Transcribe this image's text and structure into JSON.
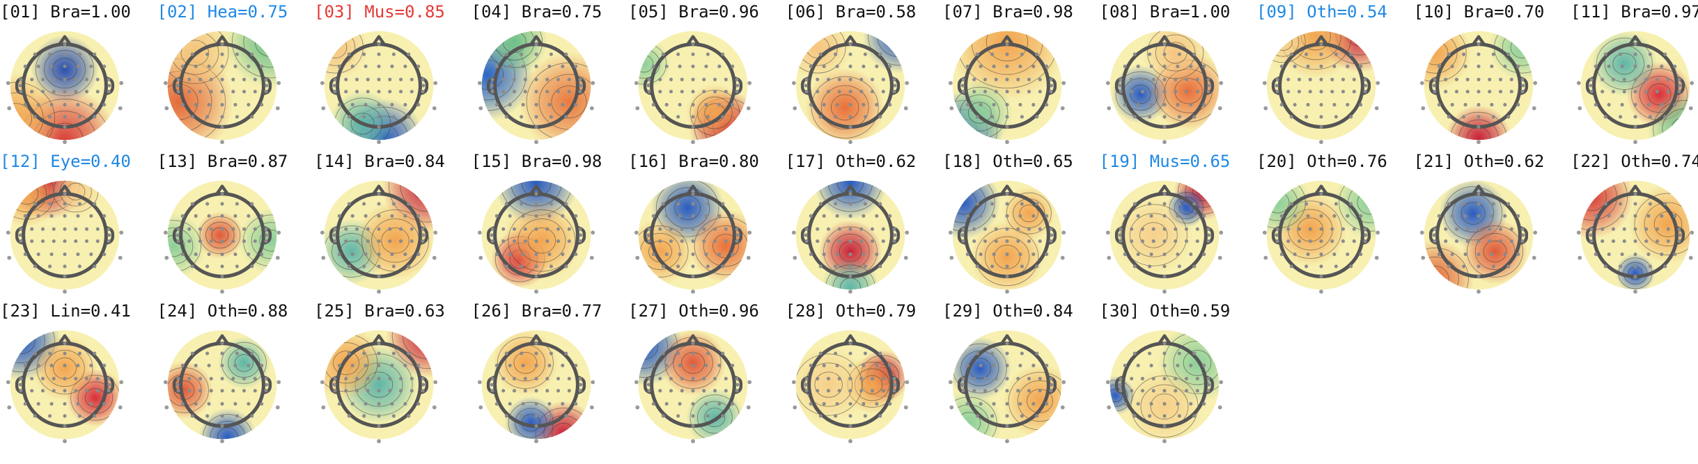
{
  "components": [
    {
      "label": "[01] Bra=1.00",
      "id": "01",
      "cls": "Bra",
      "score": 1.0,
      "color": "#111111",
      "blobs": [
        [
          "#2a4fb0",
          0.5,
          0.35,
          0.26
        ],
        [
          "#d8403a",
          0.5,
          1.0,
          0.4
        ],
        [
          "#f2a550",
          0.05,
          0.8,
          0.35
        ]
      ]
    },
    {
      "label": "[02] Hea=0.75",
      "id": "02",
      "cls": "Hea",
      "score": 0.75,
      "color": "#1e88e5",
      "blobs": [
        [
          "#e46a3a",
          0.1,
          0.65,
          0.42
        ],
        [
          "#6bbf8a",
          0.95,
          0.1,
          0.35
        ],
        [
          "#f4c27a",
          0.25,
          0.2,
          0.3
        ]
      ]
    },
    {
      "label": "[03] Mus=0.85",
      "id": "03",
      "cls": "Mus",
      "score": 0.85,
      "color": "#e53935",
      "blobs": [
        [
          "#2a5cc0",
          0.55,
          0.98,
          0.3
        ],
        [
          "#5fb6a8",
          0.35,
          0.85,
          0.25
        ],
        [
          "#f6c480",
          0.1,
          0.15,
          0.25
        ]
      ]
    },
    {
      "label": "[04] Bra=0.75",
      "id": "04",
      "cls": "Bra",
      "score": 0.75,
      "color": "#111111",
      "blobs": [
        [
          "#2b66c6",
          0.05,
          0.4,
          0.35
        ],
        [
          "#e87a40",
          0.8,
          0.65,
          0.38
        ],
        [
          "#6bbf8a",
          0.3,
          0.1,
          0.25
        ]
      ]
    },
    {
      "label": "[05] Bra=0.96",
      "id": "05",
      "cls": "Bra",
      "score": 0.96,
      "color": "#111111",
      "blobs": [
        [
          "#c8233a",
          0.8,
          0.88,
          0.28
        ],
        [
          "#f2a550",
          0.7,
          0.75,
          0.22
        ],
        [
          "#8ccf9a",
          0.05,
          0.3,
          0.2
        ]
      ]
    },
    {
      "label": "[06] Bra=0.58",
      "id": "06",
      "cls": "Bra",
      "score": 0.58,
      "color": "#111111",
      "blobs": [
        [
          "#e8703a",
          0.45,
          0.7,
          0.3
        ],
        [
          "#2a5cc0",
          0.95,
          0.05,
          0.28
        ],
        [
          "#f6c480",
          0.2,
          0.15,
          0.25
        ]
      ]
    },
    {
      "label": "[07] Bra=0.98",
      "id": "07",
      "cls": "Bra",
      "score": 0.98,
      "color": "#111111",
      "blobs": [
        [
          "#2a5cc0",
          0.1,
          0.92,
          0.3
        ],
        [
          "#f2a550",
          0.5,
          0.1,
          0.45
        ],
        [
          "#8ccf9a",
          0.25,
          0.75,
          0.25
        ]
      ]
    },
    {
      "label": "[08] Bra=1.00",
      "id": "08",
      "cls": "Bra",
      "score": 1.0,
      "color": "#111111",
      "blobs": [
        [
          "#2a5cc0",
          0.28,
          0.58,
          0.22
        ],
        [
          "#e8703a",
          0.72,
          0.55,
          0.3
        ],
        [
          "#f6c480",
          0.6,
          0.2,
          0.25
        ]
      ]
    },
    {
      "label": "[09] Oth=0.54",
      "id": "09",
      "cls": "Oth",
      "score": 0.54,
      "color": "#1e88e5",
      "blobs": [
        [
          "#c8233a",
          0.85,
          0.02,
          0.3
        ],
        [
          "#f2a550",
          0.45,
          0.05,
          0.32
        ],
        [
          "#f6d08a",
          0.15,
          0.1,
          0.2
        ]
      ]
    },
    {
      "label": "[10] Bra=0.70",
      "id": "10",
      "cls": "Bra",
      "score": 0.7,
      "color": "#111111",
      "blobs": [
        [
          "#c8233a",
          0.5,
          0.98,
          0.25
        ],
        [
          "#f2a550",
          0.1,
          0.2,
          0.28
        ],
        [
          "#8ccf9a",
          0.9,
          0.15,
          0.25
        ]
      ]
    },
    {
      "label": "[11] Bra=0.97",
      "id": "11",
      "cls": "Bra",
      "score": 0.97,
      "color": "#111111",
      "blobs": [
        [
          "#d8303a",
          0.72,
          0.58,
          0.25
        ],
        [
          "#5fb6a8",
          0.4,
          0.3,
          0.25
        ],
        [
          "#6bbf8a",
          0.95,
          0.9,
          0.28
        ]
      ]
    },
    {
      "label": "[12] Eye=0.40",
      "id": "12",
      "cls": "Eye",
      "score": 0.4,
      "color": "#1e88e5",
      "blobs": [
        [
          "#c8233a",
          0.35,
          0.02,
          0.28
        ],
        [
          "#f2a550",
          0.15,
          0.12,
          0.25
        ],
        [
          "#f6d08a",
          0.6,
          0.1,
          0.2
        ]
      ]
    },
    {
      "label": "[13] Bra=0.87",
      "id": "13",
      "cls": "Bra",
      "score": 0.87,
      "color": "#111111",
      "blobs": [
        [
          "#e05a3a",
          0.48,
          0.5,
          0.18
        ],
        [
          "#8ccf9a",
          0.05,
          0.6,
          0.25
        ],
        [
          "#8ccf9a",
          0.95,
          0.55,
          0.25
        ]
      ]
    },
    {
      "label": "[14] Bra=0.84",
      "id": "14",
      "cls": "Bra",
      "score": 0.84,
      "color": "#111111",
      "blobs": [
        [
          "#c8233a",
          0.95,
          0.05,
          0.35
        ],
        [
          "#5fb6a8",
          0.25,
          0.65,
          0.25
        ],
        [
          "#f2a550",
          0.65,
          0.55,
          0.3
        ]
      ]
    },
    {
      "label": "[15] Bra=0.98",
      "id": "15",
      "cls": "Bra",
      "score": 0.98,
      "color": "#111111",
      "blobs": [
        [
          "#2a5cc0",
          0.5,
          0.02,
          0.32
        ],
        [
          "#d8303a",
          0.35,
          0.72,
          0.22
        ],
        [
          "#f2a550",
          0.55,
          0.55,
          0.3
        ]
      ]
    },
    {
      "label": "[16] Bra=0.80",
      "id": "16",
      "cls": "Bra",
      "score": 0.8,
      "color": "#111111",
      "blobs": [
        [
          "#2a5cc0",
          0.45,
          0.25,
          0.28
        ],
        [
          "#f2a550",
          0.2,
          0.65,
          0.25
        ],
        [
          "#e8703a",
          0.8,
          0.6,
          0.28
        ]
      ]
    },
    {
      "label": "[17] Oth=0.62",
      "id": "17",
      "cls": "Oth",
      "score": 0.62,
      "color": "#111111",
      "blobs": [
        [
          "#c8233a",
          0.5,
          0.65,
          0.24
        ],
        [
          "#2a5cc0",
          0.5,
          0.02,
          0.28
        ],
        [
          "#5fb6a8",
          0.5,
          0.98,
          0.22
        ]
      ]
    },
    {
      "label": "[18] Oth=0.65",
      "id": "18",
      "cls": "Oth",
      "score": 0.65,
      "color": "#111111",
      "blobs": [
        [
          "#2a5cc0",
          0.1,
          0.2,
          0.28
        ],
        [
          "#f2a550",
          0.5,
          0.7,
          0.28
        ],
        [
          "#f2a550",
          0.7,
          0.3,
          0.2
        ]
      ]
    },
    {
      "label": "[19] Mus=0.65",
      "id": "19",
      "cls": "Mus",
      "score": 0.65,
      "color": "#1e88e5",
      "blobs": [
        [
          "#c8233a",
          0.85,
          0.1,
          0.22
        ],
        [
          "#2a5cc0",
          0.7,
          0.25,
          0.15
        ],
        [
          "#f6d08a",
          0.4,
          0.5,
          0.3
        ]
      ]
    },
    {
      "label": "[20] Oth=0.76",
      "id": "20",
      "cls": "Oth",
      "score": 0.76,
      "color": "#111111",
      "blobs": [
        [
          "#f2a550",
          0.4,
          0.45,
          0.28
        ],
        [
          "#8ccf9a",
          0.95,
          0.2,
          0.28
        ],
        [
          "#8ccf9a",
          0.1,
          0.2,
          0.25
        ]
      ]
    },
    {
      "label": "[21] Oth=0.62",
      "id": "21",
      "cls": "Oth",
      "score": 0.62,
      "color": "#111111",
      "blobs": [
        [
          "#2a5cc0",
          0.45,
          0.3,
          0.26
        ],
        [
          "#e05a3a",
          0.65,
          0.65,
          0.25
        ],
        [
          "#e46a3a",
          0.1,
          0.9,
          0.3
        ]
      ]
    },
    {
      "label": "[22] Oth=0.74",
      "id": "22",
      "cls": "Oth",
      "score": 0.74,
      "color": "#111111",
      "blobs": [
        [
          "#d8403a",
          0.1,
          0.15,
          0.32
        ],
        [
          "#2a5cc0",
          0.5,
          0.85,
          0.15
        ],
        [
          "#f2a550",
          0.8,
          0.4,
          0.3
        ]
      ]
    },
    {
      "label": "[23] Lin=0.41",
      "id": "23",
      "cls": "Lin",
      "score": 0.41,
      "color": "#111111",
      "blobs": [
        [
          "#2a5cc0",
          0.1,
          0.1,
          0.3
        ],
        [
          "#d8303a",
          0.78,
          0.62,
          0.22
        ],
        [
          "#f2a550",
          0.5,
          0.35,
          0.25
        ]
      ]
    },
    {
      "label": "[24] Oth=0.88",
      "id": "24",
      "cls": "Oth",
      "score": 0.88,
      "color": "#111111",
      "blobs": [
        [
          "#e05a3a",
          0.15,
          0.55,
          0.22
        ],
        [
          "#2a5cc0",
          0.55,
          0.98,
          0.22
        ],
        [
          "#5fb6a8",
          0.7,
          0.3,
          0.2
        ]
      ]
    },
    {
      "label": "[25] Bra=0.63",
      "id": "25",
      "cls": "Bra",
      "score": 0.63,
      "color": "#111111",
      "blobs": [
        [
          "#c8233a",
          0.95,
          0.05,
          0.32
        ],
        [
          "#5fb6a8",
          0.5,
          0.5,
          0.3
        ],
        [
          "#f2a550",
          0.2,
          0.3,
          0.28
        ]
      ]
    },
    {
      "label": "[26] Bra=0.77",
      "id": "26",
      "cls": "Bra",
      "score": 0.77,
      "color": "#111111",
      "blobs": [
        [
          "#c8233a",
          0.75,
          0.95,
          0.25
        ],
        [
          "#2a5cc0",
          0.45,
          0.85,
          0.2
        ],
        [
          "#f2a550",
          0.4,
          0.3,
          0.25
        ]
      ]
    },
    {
      "label": "[27] Oth=0.96",
      "id": "27",
      "cls": "Oth",
      "score": 0.96,
      "color": "#111111",
      "blobs": [
        [
          "#2a5cc0",
          0.05,
          0.15,
          0.3
        ],
        [
          "#e05a3a",
          0.5,
          0.3,
          0.25
        ],
        [
          "#5fb6a8",
          0.7,
          0.8,
          0.22
        ]
      ]
    },
    {
      "label": "[28] Oth=0.79",
      "id": "28",
      "cls": "Oth",
      "score": 0.79,
      "color": "#111111",
      "blobs": [
        [
          "#c8233a",
          0.8,
          0.42,
          0.2
        ],
        [
          "#f2a550",
          0.7,
          0.5,
          0.22
        ],
        [
          "#f6d08a",
          0.3,
          0.5,
          0.3
        ]
      ]
    },
    {
      "label": "[29] Oth=0.84",
      "id": "29",
      "cls": "Oth",
      "score": 0.84,
      "color": "#111111",
      "blobs": [
        [
          "#2a5cc0",
          0.25,
          0.35,
          0.24
        ],
        [
          "#f2a550",
          0.8,
          0.65,
          0.28
        ],
        [
          "#8ccf9a",
          0.15,
          0.85,
          0.25
        ]
      ]
    },
    {
      "label": "[30] Oth=0.59",
      "id": "30",
      "cls": "Oth",
      "score": 0.59,
      "color": "#111111",
      "blobs": [
        [
          "#2a5cc0",
          0.05,
          0.6,
          0.15
        ],
        [
          "#8ccf9a",
          0.8,
          0.3,
          0.3
        ],
        [
          "#f6d08a",
          0.5,
          0.7,
          0.3
        ]
      ]
    }
  ]
}
